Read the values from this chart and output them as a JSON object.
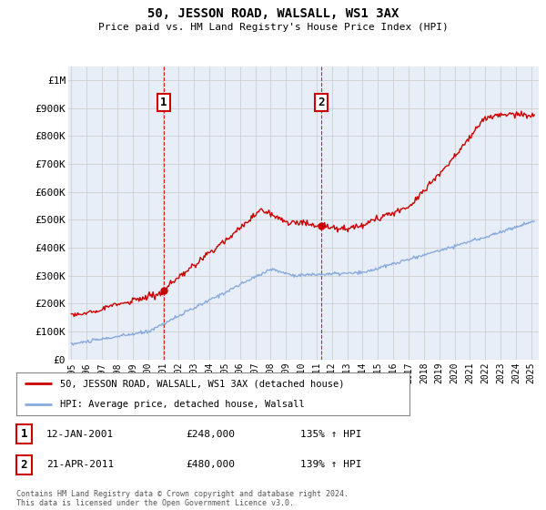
{
  "title": "50, JESSON ROAD, WALSALL, WS1 3AX",
  "subtitle": "Price paid vs. HM Land Registry's House Price Index (HPI)",
  "ylabel_ticks": [
    "£0",
    "£100K",
    "£200K",
    "£300K",
    "£400K",
    "£500K",
    "£600K",
    "£700K",
    "£800K",
    "£900K",
    "£1M"
  ],
  "ytick_values": [
    0,
    100000,
    200000,
    300000,
    400000,
    500000,
    600000,
    700000,
    800000,
    900000,
    1000000
  ],
  "ylim": [
    0,
    1050000
  ],
  "xlim_start": 1994.8,
  "xlim_end": 2025.5,
  "red_line_color": "#cc0000",
  "blue_line_color": "#88aadd",
  "vline_color": "#cc0000",
  "point1_x": 2001.04,
  "point1_y": 248000,
  "point2_x": 2011.31,
  "point2_y": 480000,
  "annotation1_label": "1",
  "annotation2_label": "2",
  "legend_line1": "50, JESSON ROAD, WALSALL, WS1 3AX (detached house)",
  "legend_line2": "HPI: Average price, detached house, Walsall",
  "table_row1": [
    "1",
    "12-JAN-2001",
    "£248,000",
    "135% ↑ HPI"
  ],
  "table_row2": [
    "2",
    "21-APR-2011",
    "£480,000",
    "139% ↑ HPI"
  ],
  "footer": "Contains HM Land Registry data © Crown copyright and database right 2024.\nThis data is licensed under the Open Government Licence v3.0.",
  "background_color": "#ffffff",
  "plot_bg_color": "#e8eef8",
  "grid_color": "#c8c8c8"
}
